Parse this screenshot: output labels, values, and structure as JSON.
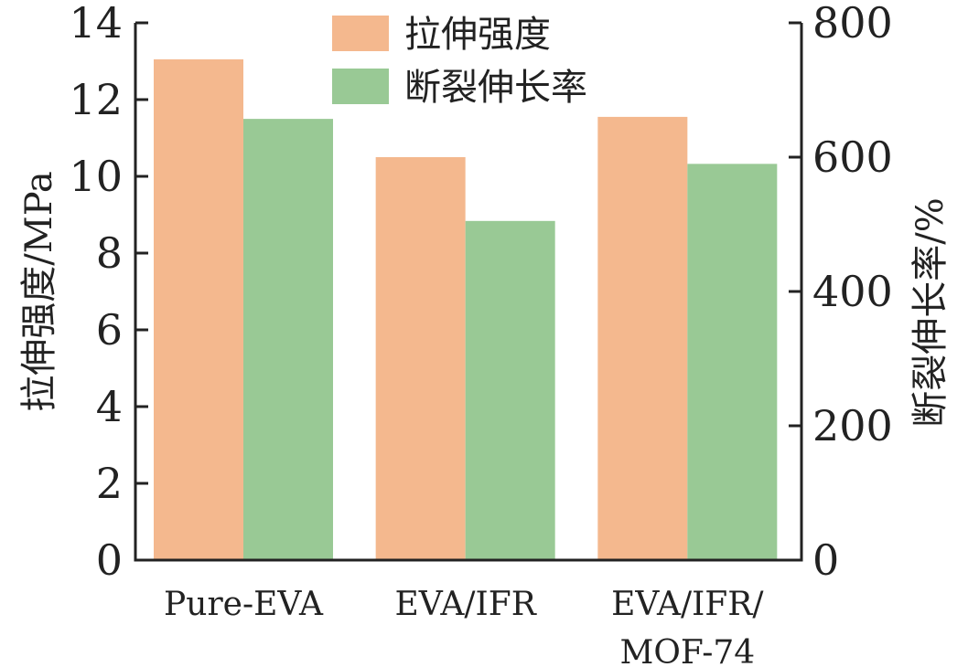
{
  "chart_data": {
    "type": "bar",
    "categories": [
      "Pure-EVA",
      "EVA/IFR",
      "EVA/IFR/\nMOF-74"
    ],
    "series": [
      {
        "name": "拉伸强度",
        "axis": "left",
        "color": "#F4B88E",
        "values": [
          13.05,
          10.5,
          11.55
        ]
      },
      {
        "name": "断裂伸长率",
        "axis": "right",
        "color": "#99C995",
        "values": [
          657,
          505,
          590
        ]
      }
    ],
    "ylabel": "拉伸强度/MPa",
    "ylabel_right": "断裂伸长率/%",
    "ylim": [
      0,
      14
    ],
    "ylim_right": [
      0,
      800
    ],
    "yticks": [
      0,
      2,
      4,
      6,
      8,
      10,
      12,
      14
    ],
    "yticks_right": [
      0,
      200,
      400,
      600,
      800
    ],
    "legend_position": "top-center",
    "grid": false
  }
}
